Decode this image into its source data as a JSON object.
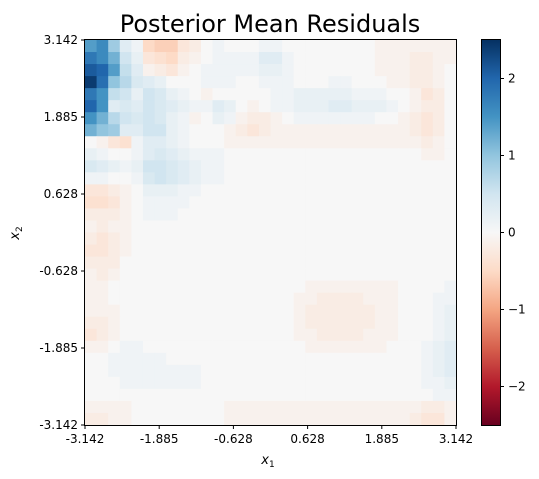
{
  "chart_data": {
    "type": "heatmap",
    "title": "Posterior Mean Residuals",
    "xlabel": "x",
    "xlabel_sub": "1",
    "ylabel": "x",
    "ylabel_sub": "2",
    "xlim": [
      -3.142,
      3.142
    ],
    "ylim": [
      -3.142,
      3.142
    ],
    "x_ticks": [
      "-3.142",
      "-1.885",
      "-0.628",
      "0.628",
      "1.885",
      "3.142"
    ],
    "y_ticks": [
      "-3.142",
      "-1.885",
      "-0.628",
      "0.628",
      "1.885",
      "3.142"
    ],
    "colorbar": {
      "colormap": "RdBu",
      "vmin": -2.5,
      "vmax": 2.5,
      "ticks": [
        "−2",
        "−1",
        "0",
        "1",
        "2"
      ],
      "tick_values": [
        -2,
        -1,
        0,
        1,
        2
      ]
    },
    "grid": false,
    "grid_rows_top_to_bottom": [
      [
        1.4,
        1.6,
        0.9,
        0.3,
        0.1,
        -0.5,
        -0.6,
        -0.6,
        -0.3,
        -0.2,
        0.0,
        0.1,
        0.0,
        0.0,
        0.0,
        0.1,
        0.1,
        0.0,
        0.0,
        0.0,
        0.0,
        0.0,
        0.0,
        0.0,
        0.0,
        -0.1,
        -0.1,
        -0.1,
        -0.1,
        -0.1,
        -0.1,
        -0.1
      ],
      [
        1.8,
        1.6,
        1.2,
        0.5,
        0.2,
        -0.3,
        -0.4,
        -0.5,
        -0.2,
        -0.1,
        0.0,
        0.1,
        0.1,
        0.1,
        0.1,
        0.3,
        0.3,
        0.1,
        0.0,
        0.0,
        0.0,
        0.0,
        0.0,
        0.0,
        0.0,
        -0.1,
        -0.1,
        -0.1,
        -0.2,
        -0.2,
        -0.1,
        -0.1
      ],
      [
        2.1,
        2.0,
        1.4,
        0.6,
        0.3,
        -0.1,
        -0.2,
        -0.3,
        -0.1,
        0.0,
        0.1,
        0.1,
        0.1,
        0.1,
        0.1,
        0.2,
        0.2,
        0.1,
        0.0,
        0.0,
        0.0,
        0.0,
        0.0,
        0.0,
        0.0,
        -0.1,
        -0.1,
        -0.1,
        -0.2,
        -0.2,
        -0.1,
        0.0
      ],
      [
        2.4,
        1.9,
        1.0,
        0.7,
        0.4,
        0.3,
        0.2,
        0.0,
        0.0,
        0.0,
        0.1,
        0.1,
        0.1,
        0.0,
        0.0,
        0.1,
        0.1,
        0.1,
        0.0,
        0.0,
        0.0,
        0.1,
        0.1,
        0.0,
        0.0,
        0.0,
        -0.1,
        -0.1,
        -0.2,
        -0.2,
        -0.1,
        0.0
      ],
      [
        1.8,
        1.5,
        0.6,
        0.5,
        0.2,
        0.5,
        0.4,
        0.2,
        0.1,
        0.0,
        -0.1,
        0.0,
        0.0,
        0.0,
        0.0,
        0.0,
        0.1,
        0.1,
        0.2,
        0.2,
        0.2,
        0.2,
        0.2,
        0.1,
        0.1,
        0.1,
        0.0,
        0.0,
        -0.1,
        -0.3,
        -0.2,
        0.0
      ],
      [
        2.0,
        1.5,
        0.3,
        0.4,
        0.3,
        0.5,
        0.4,
        0.3,
        0.2,
        0.1,
        0.1,
        0.3,
        0.2,
        0.0,
        -0.1,
        0.0,
        0.1,
        0.1,
        0.2,
        0.2,
        0.2,
        0.3,
        0.3,
        0.2,
        0.2,
        0.2,
        0.1,
        0.0,
        -0.1,
        -0.2,
        -0.2,
        0.0
      ],
      [
        1.5,
        1.2,
        0.7,
        0.5,
        0.4,
        0.5,
        0.4,
        0.2,
        0.1,
        -0.1,
        0.0,
        0.2,
        0.1,
        -0.1,
        -0.2,
        -0.2,
        -0.1,
        0.0,
        0.1,
        0.1,
        0.1,
        0.1,
        0.1,
        0.1,
        0.1,
        0.0,
        0.0,
        -0.1,
        -0.2,
        -0.3,
        -0.2,
        0.0
      ],
      [
        1.2,
        1.0,
        0.9,
        0.3,
        0.3,
        0.5,
        0.5,
        0.2,
        0.1,
        0.0,
        0.0,
        0.0,
        -0.1,
        -0.2,
        -0.3,
        -0.2,
        -0.1,
        -0.1,
        -0.1,
        -0.1,
        -0.1,
        -0.1,
        -0.1,
        -0.1,
        -0.1,
        -0.1,
        -0.1,
        -0.1,
        -0.2,
        -0.3,
        -0.2,
        0.0
      ],
      [
        0.0,
        -0.1,
        -0.3,
        -0.4,
        0.1,
        0.3,
        0.3,
        0.2,
        0.1,
        0.0,
        0.0,
        0.0,
        -0.1,
        -0.1,
        -0.1,
        -0.1,
        -0.1,
        -0.1,
        -0.1,
        -0.1,
        -0.1,
        -0.1,
        -0.1,
        -0.1,
        -0.1,
        -0.1,
        -0.1,
        -0.1,
        -0.1,
        -0.2,
        -0.1,
        0.0
      ],
      [
        0.2,
        0.1,
        0.0,
        0.0,
        0.1,
        0.3,
        0.4,
        0.3,
        0.2,
        0.1,
        0.1,
        0.1,
        0.0,
        0.0,
        0.0,
        0.0,
        0.0,
        0.0,
        0.0,
        0.0,
        0.0,
        0.0,
        0.0,
        0.0,
        0.0,
        0.0,
        0.0,
        0.0,
        0.0,
        -0.1,
        -0.1,
        0.0
      ],
      [
        0.4,
        0.3,
        0.2,
        0.1,
        0.2,
        0.5,
        0.5,
        0.4,
        0.3,
        0.2,
        0.1,
        0.1,
        0.0,
        0.0,
        0.0,
        0.0,
        0.0,
        0.0,
        0.0,
        0.0,
        0.0,
        0.0,
        0.0,
        0.0,
        0.0,
        0.0,
        0.0,
        0.0,
        0.0,
        0.0,
        0.0,
        0.0
      ],
      [
        0.1,
        0.1,
        0.0,
        0.0,
        0.1,
        0.4,
        0.5,
        0.4,
        0.3,
        0.2,
        0.1,
        0.1,
        0.0,
        0.0,
        0.0,
        0.0,
        0.0,
        0.0,
        0.0,
        0.0,
        0.0,
        0.0,
        0.0,
        0.0,
        0.0,
        0.0,
        0.0,
        0.0,
        0.0,
        0.0,
        0.0,
        0.0
      ],
      [
        -0.3,
        -0.3,
        -0.2,
        -0.1,
        0.0,
        0.2,
        0.2,
        0.2,
        0.1,
        0.1,
        0.0,
        0.0,
        0.0,
        0.0,
        0.0,
        0.0,
        0.0,
        0.0,
        0.0,
        0.0,
        0.0,
        0.0,
        0.0,
        0.0,
        0.0,
        0.0,
        0.0,
        0.0,
        0.0,
        0.0,
        0.0,
        0.0
      ],
      [
        -0.4,
        -0.4,
        -0.3,
        -0.1,
        0.0,
        0.1,
        0.1,
        0.1,
        0.1,
        0.0,
        0.0,
        0.0,
        0.0,
        0.0,
        0.0,
        0.0,
        0.0,
        0.0,
        0.0,
        0.0,
        0.0,
        0.0,
        0.0,
        0.0,
        0.0,
        0.0,
        0.0,
        0.0,
        0.0,
        0.0,
        0.0,
        0.0
      ],
      [
        -0.2,
        -0.2,
        -0.2,
        -0.1,
        0.0,
        0.1,
        0.1,
        0.1,
        0.0,
        0.0,
        0.0,
        0.0,
        0.0,
        0.0,
        0.0,
        0.0,
        0.0,
        0.0,
        0.0,
        0.0,
        0.0,
        0.0,
        0.0,
        0.0,
        0.0,
        0.0,
        0.0,
        0.0,
        0.0,
        0.0,
        0.0,
        0.0
      ],
      [
        -0.1,
        -0.2,
        -0.1,
        -0.1,
        0.0,
        0.0,
        0.0,
        0.0,
        0.0,
        0.0,
        0.0,
        0.0,
        0.0,
        0.0,
        0.0,
        0.0,
        0.0,
        0.0,
        0.0,
        0.0,
        0.0,
        0.0,
        0.0,
        0.0,
        0.0,
        0.0,
        0.0,
        0.0,
        0.0,
        0.0,
        0.0,
        0.0
      ],
      [
        -0.2,
        -0.3,
        -0.2,
        -0.1,
        0.0,
        0.0,
        0.0,
        0.0,
        0.0,
        0.0,
        0.0,
        0.0,
        0.0,
        0.0,
        0.0,
        0.0,
        0.0,
        0.0,
        0.0,
        0.0,
        0.0,
        0.0,
        0.0,
        0.0,
        0.0,
        0.0,
        0.0,
        0.0,
        0.0,
        0.0,
        0.0,
        0.0
      ],
      [
        -0.3,
        -0.3,
        -0.2,
        -0.1,
        0.0,
        0.0,
        0.0,
        0.0,
        0.0,
        0.0,
        0.0,
        0.0,
        0.0,
        0.0,
        0.0,
        0.0,
        0.0,
        0.0,
        0.0,
        0.0,
        0.0,
        0.0,
        0.0,
        0.0,
        0.0,
        0.0,
        0.0,
        0.0,
        0.0,
        0.0,
        0.0,
        0.0
      ],
      [
        -0.2,
        -0.2,
        -0.2,
        0.0,
        0.0,
        0.0,
        0.0,
        0.0,
        0.0,
        0.0,
        0.0,
        0.0,
        0.0,
        0.0,
        0.0,
        0.0,
        0.0,
        0.0,
        0.0,
        0.0,
        0.0,
        0.0,
        0.0,
        0.0,
        0.0,
        0.0,
        0.0,
        0.0,
        0.0,
        0.0,
        0.0,
        0.0
      ],
      [
        -0.1,
        -0.2,
        -0.1,
        0.0,
        0.0,
        0.0,
        0.0,
        0.0,
        0.0,
        0.0,
        0.0,
        0.0,
        0.0,
        0.0,
        0.0,
        0.0,
        0.0,
        0.0,
        0.0,
        0.0,
        0.0,
        0.0,
        0.0,
        0.0,
        0.0,
        0.0,
        0.0,
        0.0,
        0.0,
        0.0,
        0.0,
        0.0
      ],
      [
        -0.1,
        -0.1,
        0.0,
        0.0,
        0.0,
        0.0,
        0.0,
        0.0,
        0.0,
        0.0,
        0.0,
        0.0,
        0.0,
        0.0,
        0.0,
        0.0,
        0.0,
        0.0,
        0.0,
        -0.1,
        -0.1,
        -0.1,
        -0.1,
        -0.1,
        -0.1,
        -0.1,
        -0.1,
        0.0,
        0.0,
        0.0,
        0.0,
        0.1
      ],
      [
        -0.1,
        -0.1,
        0.0,
        0.0,
        0.0,
        0.0,
        0.0,
        0.0,
        0.0,
        0.0,
        0.0,
        0.0,
        0.0,
        0.0,
        0.0,
        0.0,
        0.0,
        0.0,
        -0.1,
        -0.1,
        -0.2,
        -0.2,
        -0.2,
        -0.2,
        -0.1,
        -0.1,
        -0.1,
        0.0,
        0.0,
        0.0,
        0.1,
        0.1
      ],
      [
        -0.1,
        -0.1,
        -0.1,
        0.0,
        0.0,
        0.0,
        0.0,
        0.0,
        0.0,
        0.0,
        0.0,
        0.0,
        0.0,
        0.0,
        0.0,
        0.0,
        0.0,
        0.0,
        -0.1,
        -0.2,
        -0.2,
        -0.2,
        -0.2,
        -0.2,
        -0.2,
        -0.1,
        -0.1,
        0.0,
        0.0,
        0.0,
        0.1,
        0.2
      ],
      [
        -0.2,
        -0.2,
        -0.1,
        0.0,
        0.0,
        0.0,
        0.0,
        0.0,
        0.0,
        0.0,
        0.0,
        0.0,
        0.0,
        0.0,
        0.0,
        0.0,
        0.0,
        0.0,
        -0.1,
        -0.2,
        -0.2,
        -0.2,
        -0.2,
        -0.2,
        -0.2,
        -0.1,
        -0.1,
        0.0,
        0.0,
        0.0,
        0.1,
        0.2
      ],
      [
        -0.3,
        -0.2,
        -0.1,
        0.0,
        0.0,
        0.0,
        0.0,
        0.0,
        0.0,
        0.0,
        0.0,
        0.0,
        0.0,
        0.0,
        0.0,
        0.0,
        0.0,
        0.0,
        -0.1,
        -0.1,
        -0.2,
        -0.2,
        -0.2,
        -0.2,
        -0.1,
        -0.1,
        -0.1,
        0.0,
        0.0,
        0.0,
        0.1,
        0.2
      ],
      [
        -0.1,
        -0.1,
        0.0,
        0.1,
        0.1,
        0.0,
        0.0,
        0.0,
        0.0,
        0.0,
        0.0,
        0.0,
        0.0,
        0.0,
        0.0,
        0.0,
        0.0,
        0.0,
        0.0,
        -0.1,
        -0.1,
        -0.1,
        -0.1,
        -0.1,
        -0.1,
        -0.1,
        0.0,
        0.0,
        0.0,
        0.1,
        0.2,
        0.3
      ],
      [
        0.0,
        0.0,
        0.1,
        0.1,
        0.1,
        0.1,
        0.1,
        0.0,
        0.0,
        0.0,
        0.0,
        0.0,
        0.0,
        0.0,
        0.0,
        0.0,
        0.0,
        0.0,
        0.0,
        0.0,
        0.0,
        0.0,
        0.0,
        0.0,
        0.0,
        0.0,
        0.0,
        0.0,
        0.0,
        0.1,
        0.2,
        0.3
      ],
      [
        0.0,
        0.0,
        0.1,
        0.1,
        0.1,
        0.1,
        0.1,
        0.1,
        0.1,
        0.1,
        0.0,
        0.0,
        0.0,
        0.0,
        0.0,
        0.0,
        0.0,
        0.0,
        0.0,
        0.0,
        0.0,
        0.0,
        0.0,
        0.0,
        0.0,
        0.0,
        0.0,
        0.0,
        0.0,
        0.1,
        0.2,
        0.3
      ],
      [
        0.0,
        0.0,
        0.0,
        0.1,
        0.1,
        0.1,
        0.1,
        0.1,
        0.1,
        0.1,
        0.0,
        0.0,
        0.0,
        0.0,
        0.0,
        0.0,
        0.0,
        0.0,
        0.0,
        0.0,
        0.0,
        0.0,
        0.0,
        0.0,
        0.0,
        0.0,
        0.0,
        0.0,
        0.0,
        0.1,
        0.1,
        0.2
      ],
      [
        0.0,
        0.0,
        0.0,
        0.0,
        0.0,
        0.0,
        0.0,
        0.0,
        0.0,
        0.0,
        0.0,
        0.0,
        0.0,
        0.0,
        0.0,
        0.0,
        0.0,
        0.0,
        0.0,
        0.0,
        0.0,
        0.0,
        0.0,
        0.0,
        0.0,
        0.0,
        0.0,
        0.0,
        0.0,
        0.0,
        0.1,
        0.1
      ],
      [
        -0.1,
        -0.1,
        -0.1,
        -0.1,
        0.0,
        0.0,
        0.0,
        0.0,
        0.0,
        0.0,
        0.0,
        0.0,
        -0.1,
        -0.1,
        -0.1,
        -0.1,
        -0.1,
        -0.1,
        -0.1,
        -0.1,
        -0.1,
        -0.1,
        -0.1,
        -0.1,
        -0.1,
        -0.1,
        -0.1,
        -0.1,
        -0.1,
        -0.2,
        -0.2,
        -0.1
      ],
      [
        -0.2,
        -0.2,
        -0.1,
        -0.1,
        0.0,
        0.0,
        0.0,
        0.0,
        0.0,
        0.0,
        0.0,
        0.0,
        -0.1,
        -0.1,
        -0.1,
        -0.1,
        -0.1,
        -0.1,
        -0.1,
        -0.1,
        -0.1,
        -0.1,
        -0.1,
        -0.1,
        -0.1,
        -0.1,
        -0.1,
        -0.1,
        -0.2,
        -0.3,
        -0.3,
        -0.1
      ]
    ]
  }
}
